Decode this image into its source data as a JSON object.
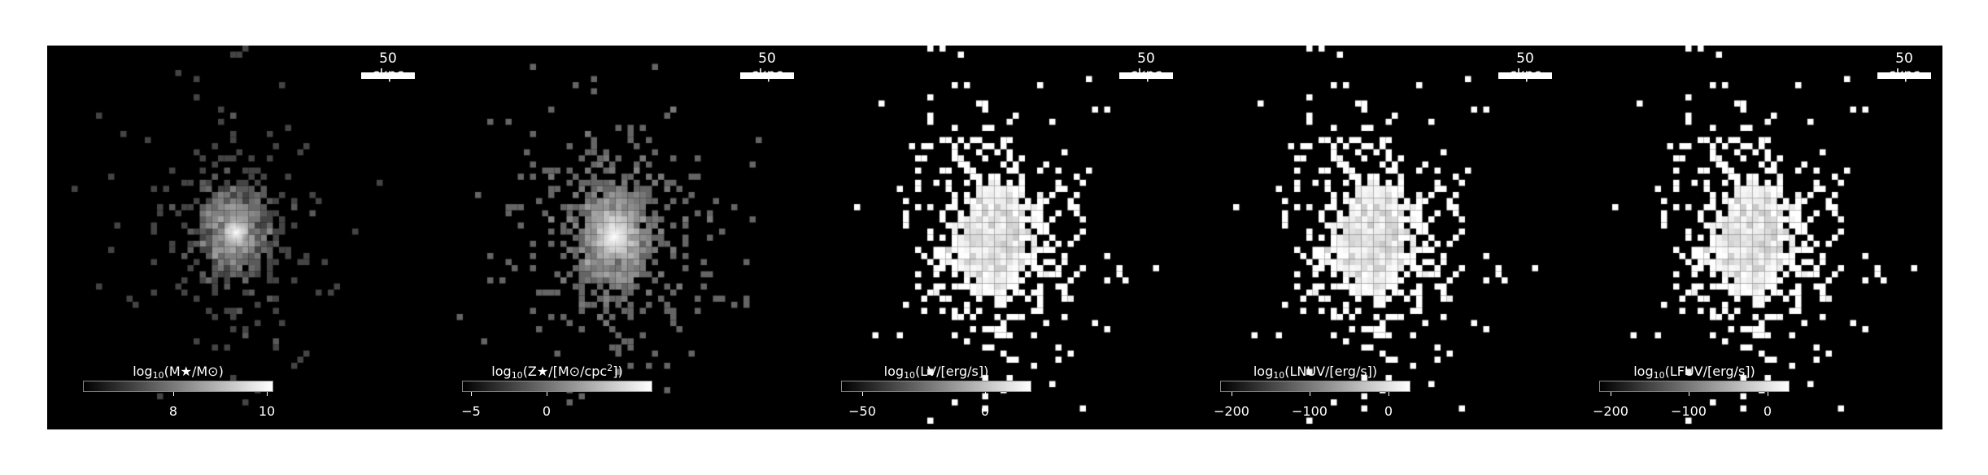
{
  "panels": [
    {
      "scale_label": "50 ckpc",
      "colorbar": {
        "label_pre": "log",
        "label_sub": "10",
        "label_main": "(M★/M⊙)",
        "label_sup": "",
        "label_post": "",
        "ticks": [
          "8",
          "10"
        ]
      },
      "style": "mass"
    },
    {
      "scale_label": "50 ckpc",
      "colorbar": {
        "label_pre": "log",
        "label_sub": "10",
        "label_main": "(Z★/[M⊙/cpc",
        "label_sup": "2",
        "label_post": "])",
        "ticks": [
          "−5",
          "0"
        ]
      },
      "style": "metal"
    },
    {
      "scale_label": "50 ckpc",
      "colorbar": {
        "label_pre": "log",
        "label_sub": "10",
        "label_main": "(L",
        "label_sup": "",
        "label_post": "V/[erg/s])",
        "ticks": [
          "−50",
          "0"
        ]
      },
      "style": "lum"
    },
    {
      "scale_label": "50 ckpc",
      "colorbar": {
        "label_pre": "log",
        "label_sub": "10",
        "label_main": "(L",
        "label_sup": "",
        "label_post": "NUV/[erg/s])",
        "ticks": [
          "−200",
          "−100",
          "0"
        ]
      },
      "style": "lum"
    },
    {
      "scale_label": "50 ckpc",
      "colorbar": {
        "label_pre": "log",
        "label_sub": "10",
        "label_main": "(L",
        "label_sup": "",
        "label_post": "FUV/[erg/s])",
        "ticks": [
          "−200",
          "−100",
          "0"
        ]
      },
      "style": "lum"
    }
  ]
}
